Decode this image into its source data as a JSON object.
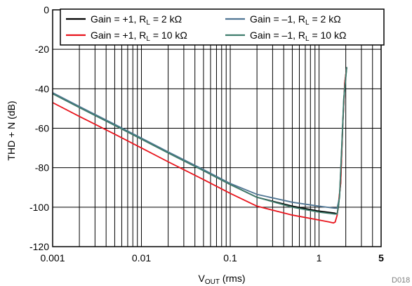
{
  "chart_data": {
    "type": "line",
    "xscale": "log",
    "xlim": [
      0.001,
      5
    ],
    "ylim": [
      -120,
      0
    ],
    "x_ticks": [
      0.001,
      0.01,
      0.1,
      1,
      5
    ],
    "x_tick_labels": [
      "0.001",
      "0.01",
      "0.1",
      "1",
      "5"
    ],
    "y_ticks": [
      0,
      -20,
      -40,
      -60,
      -80,
      -100,
      -120
    ],
    "y_tick_labels": [
      "0",
      "-20",
      "-40",
      "-60",
      "-80",
      "-100",
      "-120"
    ],
    "xlabel": {
      "main": "V",
      "sub": "OUT",
      "rest": " (rms)"
    },
    "ylabel": "THD + N (dB)",
    "figure_code": "D018",
    "grid": {
      "vertical": true,
      "horizontal": true
    },
    "legend_position": "top",
    "series": [
      {
        "name": {
          "pre": "Gain = +1, R",
          "sub": "L",
          "post": " = 2 kΩ"
        },
        "color": "#000000",
        "points": [
          [
            0.001,
            -42.5
          ],
          [
            0.002,
            -49.5
          ],
          [
            0.005,
            -58.5
          ],
          [
            0.01,
            -65.5
          ],
          [
            0.02,
            -72.5
          ],
          [
            0.05,
            -81.5
          ],
          [
            0.1,
            -88.5
          ],
          [
            0.2,
            -95
          ],
          [
            0.5,
            -99.5
          ],
          [
            1,
            -102
          ],
          [
            1.5,
            -103
          ],
          [
            1.6,
            -103.5
          ],
          [
            1.65,
            -100
          ],
          [
            1.75,
            -88
          ],
          [
            1.85,
            -58
          ],
          [
            1.95,
            -37
          ],
          [
            2.05,
            -29
          ]
        ]
      },
      {
        "name": {
          "pre": "Gain = +1, R",
          "sub": "L",
          "post": " = 10 kΩ"
        },
        "color": "#e8141c",
        "points": [
          [
            0.001,
            -47
          ],
          [
            0.002,
            -54
          ],
          [
            0.005,
            -63
          ],
          [
            0.01,
            -70
          ],
          [
            0.02,
            -77
          ],
          [
            0.05,
            -86
          ],
          [
            0.1,
            -93
          ],
          [
            0.2,
            -99.5
          ],
          [
            0.5,
            -104
          ],
          [
            1,
            -106.5
          ],
          [
            1.3,
            -107.5
          ],
          [
            1.45,
            -108
          ],
          [
            1.52,
            -107.5
          ],
          [
            1.6,
            -104
          ],
          [
            1.75,
            -88
          ],
          [
            1.85,
            -58
          ],
          [
            1.95,
            -37
          ],
          [
            2.05,
            -29
          ]
        ]
      },
      {
        "name": {
          "pre": "Gain = –1, R",
          "sub": "L",
          "post": " = 2 kΩ"
        },
        "color": "#4f7593",
        "points": [
          [
            0.001,
            -42
          ],
          [
            0.002,
            -49
          ],
          [
            0.005,
            -58
          ],
          [
            0.01,
            -65
          ],
          [
            0.02,
            -72
          ],
          [
            0.05,
            -81
          ],
          [
            0.1,
            -88
          ],
          [
            0.2,
            -93.5
          ],
          [
            0.5,
            -97.5
          ],
          [
            1,
            -99.5
          ],
          [
            1.5,
            -100.5
          ],
          [
            1.6,
            -100.5
          ],
          [
            1.7,
            -95
          ],
          [
            1.8,
            -70
          ],
          [
            1.9,
            -45
          ],
          [
            2.05,
            -29
          ]
        ]
      },
      {
        "name": {
          "pre": "Gain = –1, R",
          "sub": "L",
          "post": " = 10 kΩ"
        },
        "color": "#3f7d6d",
        "points": [
          [
            0.001,
            -42.5
          ],
          [
            0.002,
            -49.5
          ],
          [
            0.005,
            -58.5
          ],
          [
            0.01,
            -65.5
          ],
          [
            0.02,
            -72.5
          ],
          [
            0.05,
            -81.5
          ],
          [
            0.1,
            -88.5
          ],
          [
            0.2,
            -95
          ],
          [
            0.5,
            -100
          ],
          [
            1,
            -102.5
          ],
          [
            1.5,
            -103.5
          ],
          [
            1.6,
            -103.5
          ],
          [
            1.7,
            -95
          ],
          [
            1.8,
            -70
          ],
          [
            1.9,
            -45
          ],
          [
            2.05,
            -29
          ]
        ]
      }
    ]
  }
}
